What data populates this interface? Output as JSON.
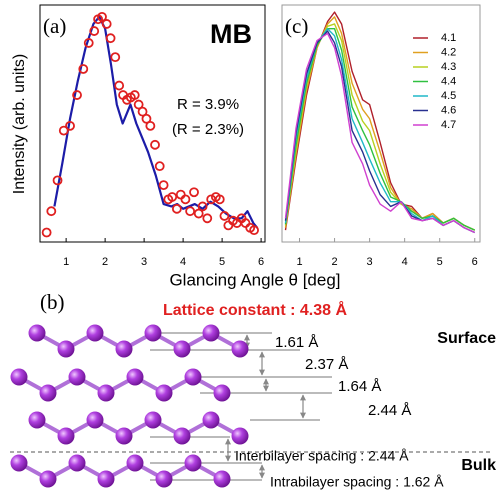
{
  "chart_data": [
    {
      "type": "line",
      "panel_label": "(a)",
      "annotations": [
        "MB",
        "R = 3.9%",
        "(R = 2.3%)"
      ],
      "xlabel": "Glancing Angle θ [deg]",
      "ylabel": "Intensity (arb. units)",
      "xlim": [
        0.33,
        6.1
      ],
      "ylim": [
        0,
        1
      ],
      "xticks": [
        1,
        2,
        3,
        4,
        5,
        6
      ],
      "series": [
        {
          "style": "markers",
          "color": "#e02020",
          "x": [
            0.5,
            0.62,
            0.78,
            0.94,
            1.1,
            1.28,
            1.44,
            1.58,
            1.72,
            1.82,
            1.92,
            2.04,
            2.14,
            2.26,
            2.36,
            2.46,
            2.56,
            2.66,
            2.76,
            2.86,
            2.96,
            3.06,
            3.16,
            3.28,
            3.4,
            3.5,
            3.62,
            3.72,
            3.84,
            3.94,
            4.06,
            4.18,
            4.28,
            4.4,
            4.5,
            4.62,
            4.72,
            4.84,
            4.94,
            5.06,
            5.16,
            5.28,
            5.38,
            5.5,
            5.6,
            5.72,
            5.82
          ],
          "values": [
            0.04,
            0.13,
            0.26,
            0.47,
            0.49,
            0.62,
            0.73,
            0.84,
            0.89,
            0.94,
            0.95,
            0.92,
            0.86,
            0.78,
            0.66,
            0.62,
            0.6,
            0.61,
            0.62,
            0.58,
            0.55,
            0.52,
            0.49,
            0.41,
            0.32,
            0.24,
            0.18,
            0.19,
            0.14,
            0.2,
            0.18,
            0.13,
            0.21,
            0.12,
            0.15,
            0.1,
            0.18,
            0.19,
            0.18,
            0.11,
            0.07,
            0.09,
            0.08,
            0.1,
            0.08,
            0.06,
            0.05
          ]
        },
        {
          "style": "line",
          "color": "#1c1ca8",
          "x": [
            0.7,
            0.9,
            1.1,
            1.3,
            1.5,
            1.7,
            1.85,
            2.0,
            2.15,
            2.3,
            2.45,
            2.55,
            2.65,
            2.8,
            2.95,
            3.1,
            3.3,
            3.5,
            3.7,
            3.85,
            4.0,
            4.15,
            4.3,
            4.5,
            4.7,
            4.9,
            5.1,
            5.3,
            5.5,
            5.65,
            5.8,
            5.9
          ],
          "values": [
            0.15,
            0.33,
            0.52,
            0.68,
            0.82,
            0.92,
            0.95,
            0.9,
            0.75,
            0.58,
            0.5,
            0.54,
            0.58,
            0.5,
            0.44,
            0.38,
            0.28,
            0.16,
            0.15,
            0.16,
            0.14,
            0.15,
            0.16,
            0.14,
            0.17,
            0.15,
            0.12,
            0.1,
            0.1,
            0.13,
            0.08,
            0.06
          ]
        }
      ]
    },
    {
      "type": "line",
      "panel_label": "(c)",
      "legend": "upper right",
      "xlim": [
        0.5,
        6.15
      ],
      "ylim": [
        0,
        1
      ],
      "xticks": [
        1,
        2,
        3,
        4,
        5,
        6
      ],
      "x": [
        0.6,
        0.9,
        1.2,
        1.5,
        1.8,
        2.0,
        2.2,
        2.5,
        2.8,
        3.0,
        3.3,
        3.6,
        3.9,
        4.2,
        4.5,
        4.8,
        5.1,
        5.4,
        5.7,
        6.0
      ],
      "series": [
        {
          "name": "4.1",
          "color": "#b0202a",
          "values": [
            0.05,
            0.35,
            0.62,
            0.82,
            0.93,
            0.97,
            0.92,
            0.72,
            0.6,
            0.58,
            0.42,
            0.25,
            0.16,
            0.15,
            0.1,
            0.12,
            0.08,
            0.1,
            0.07,
            0.05
          ]
        },
        {
          "name": "4.2",
          "color": "#e0a020",
          "values": [
            0.06,
            0.37,
            0.64,
            0.82,
            0.92,
            0.95,
            0.88,
            0.67,
            0.56,
            0.52,
            0.38,
            0.23,
            0.16,
            0.14,
            0.1,
            0.12,
            0.08,
            0.1,
            0.07,
            0.05
          ]
        },
        {
          "name": "4.3",
          "color": "#b8d020",
          "values": [
            0.07,
            0.39,
            0.66,
            0.83,
            0.91,
            0.92,
            0.85,
            0.62,
            0.51,
            0.47,
            0.33,
            0.21,
            0.16,
            0.13,
            0.1,
            0.11,
            0.08,
            0.1,
            0.07,
            0.05
          ]
        },
        {
          "name": "4.4",
          "color": "#30c040",
          "values": [
            0.075,
            0.41,
            0.67,
            0.83,
            0.9,
            0.9,
            0.81,
            0.57,
            0.47,
            0.41,
            0.29,
            0.19,
            0.17,
            0.13,
            0.1,
            0.11,
            0.08,
            0.1,
            0.07,
            0.05
          ]
        },
        {
          "name": "4.5",
          "color": "#20b8c8",
          "values": [
            0.08,
            0.44,
            0.69,
            0.84,
            0.9,
            0.87,
            0.77,
            0.52,
            0.42,
            0.35,
            0.25,
            0.17,
            0.17,
            0.12,
            0.09,
            0.11,
            0.07,
            0.09,
            0.06,
            0.04
          ]
        },
        {
          "name": "4.6",
          "color": "#283090",
          "values": [
            0.09,
            0.46,
            0.71,
            0.84,
            0.89,
            0.84,
            0.74,
            0.47,
            0.38,
            0.3,
            0.2,
            0.15,
            0.17,
            0.11,
            0.09,
            0.1,
            0.07,
            0.09,
            0.06,
            0.04
          ]
        },
        {
          "name": "4.7",
          "color": "#d040d0",
          "values": [
            0.1,
            0.48,
            0.73,
            0.85,
            0.88,
            0.82,
            0.7,
            0.42,
            0.33,
            0.24,
            0.16,
            0.13,
            0.17,
            0.1,
            0.09,
            0.1,
            0.07,
            0.09,
            0.06,
            0.04
          ]
        }
      ]
    }
  ],
  "diagram": {
    "panel_label": "(b)",
    "title": "Lattice constant : 4.38 Å",
    "surface_label": "Surface",
    "bulk_label": "Bulk",
    "spacings": [
      "1.61 Å",
      "2.37 Å",
      "1.64 Å",
      "2.44 Å"
    ],
    "interbilayer": "Interbilayer spacing : 2.44 Å",
    "intrabilayer": "Intrabilayer spacing : 1.62 Å"
  }
}
